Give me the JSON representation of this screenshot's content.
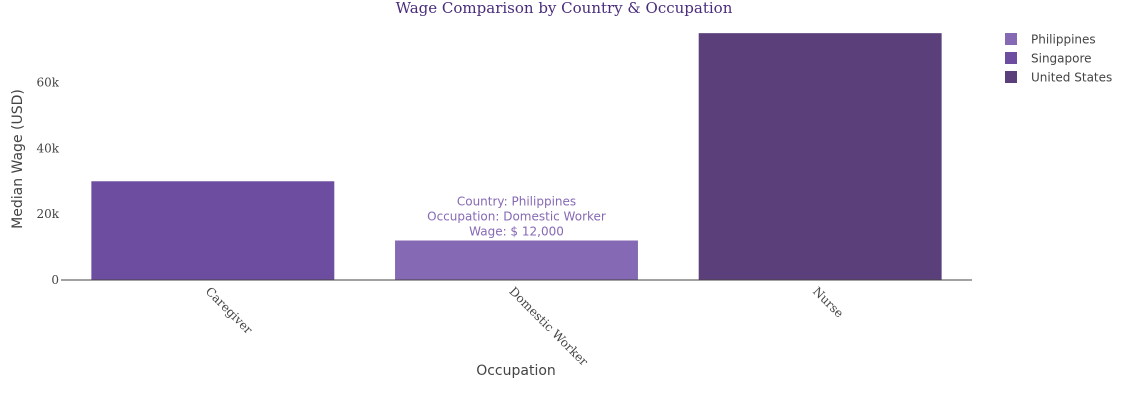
{
  "chart_data": {
    "type": "bar",
    "title": "Wage Comparison by Country & Occupation",
    "xlabel": "Occupation",
    "ylabel": "Median Wage (USD)",
    "ylim": [
      0,
      79000
    ],
    "yticks": [
      0,
      20000,
      40000,
      60000
    ],
    "ytick_labels": [
      "0",
      "20k",
      "40k",
      "60k"
    ],
    "categories": [
      "Caregiver",
      "Domestic Worker",
      "Nurse"
    ],
    "bars": [
      {
        "category": "Caregiver",
        "country": "Singapore",
        "value": 30000
      },
      {
        "category": "Domestic Worker",
        "country": "Philippines",
        "value": 12000
      },
      {
        "category": "Nurse",
        "country": "United States",
        "value": 75000
      }
    ],
    "legend": {
      "position": "top-right",
      "entries": [
        {
          "name": "Philippines",
          "color": "#8669b5"
        },
        {
          "name": "Singapore",
          "color": "#6d4da0"
        },
        {
          "name": "United States",
          "color": "#5b3f7a"
        }
      ]
    },
    "hover_label": {
      "lines": [
        "Country: Philippines",
        "Occupation: Domestic Worker",
        "Wage: $ 12,000"
      ]
    },
    "colors": {
      "title": "#4a2d7a",
      "hover_text": "#8669b5",
      "axis_line": "#444444"
    }
  }
}
